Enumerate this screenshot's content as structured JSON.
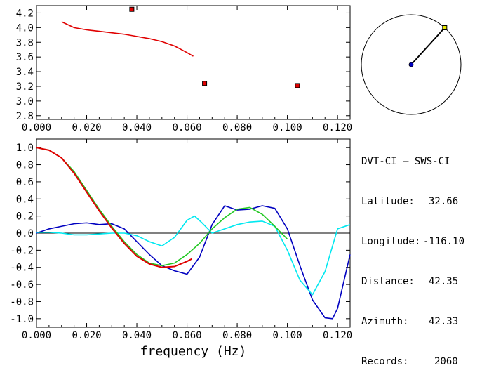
{
  "station": {
    "title": "DVT-CI – SWS-CI",
    "rows": [
      {
        "label": "Latitude:",
        "value": "32.66"
      },
      {
        "label": "Longitude:",
        "value": "-116.10"
      },
      {
        "label": "Distance:",
        "value": "42.35"
      },
      {
        "label": "Azimuth:",
        "value": "42.33"
      },
      {
        "label": "Records:",
        "value": "2060"
      }
    ]
  },
  "colors": {
    "red": "#e00000",
    "green": "#22c822",
    "blue": "#0000c0",
    "cyan": "#00e8f0",
    "marker": "#e00000",
    "azimuth_dot": "#e8e800"
  },
  "chart_data": [
    {
      "type": "scatter",
      "title": "",
      "xlabel": "",
      "ylabel": "",
      "xlim": [
        0.0,
        0.125
      ],
      "ylim": [
        2.75,
        4.3
      ],
      "xticks": [
        "0.000",
        "0.020",
        "0.040",
        "0.060",
        "0.080",
        "0.100",
        "0.120"
      ],
      "yticks": [
        "2.8",
        "3.0",
        "3.2",
        "3.4",
        "3.6",
        "3.8",
        "4.0",
        "4.2"
      ],
      "series": [
        {
          "color": "red",
          "style": "line",
          "x": [
            0.01,
            0.015,
            0.02,
            0.025,
            0.03,
            0.035,
            0.04,
            0.045,
            0.05,
            0.055,
            0.06,
            0.0625
          ],
          "y": [
            4.08,
            4.0,
            3.97,
            3.95,
            3.93,
            3.91,
            3.88,
            3.85,
            3.81,
            3.75,
            3.66,
            3.61
          ]
        },
        {
          "color": "marker",
          "style": "markers",
          "x": [
            0.038,
            0.067,
            0.104
          ],
          "y": [
            4.25,
            3.24,
            3.21
          ]
        }
      ]
    },
    {
      "type": "line",
      "title": "",
      "xlabel": "frequency (Hz)",
      "ylabel": "",
      "xlim": [
        0.0,
        0.125
      ],
      "ylim": [
        -1.1,
        1.1
      ],
      "xticks": [
        "0.000",
        "0.020",
        "0.040",
        "0.060",
        "0.080",
        "0.100",
        "0.120"
      ],
      "yticks": [
        "1.0",
        "0.8",
        "0.6",
        "0.4",
        "0.2",
        "0.0",
        "-0.2",
        "-0.4",
        "-0.6",
        "-0.8",
        "-1.0"
      ],
      "series": [
        {
          "color": "blue",
          "x": [
            0.0,
            0.005,
            0.01,
            0.015,
            0.02,
            0.025,
            0.03,
            0.035,
            0.04,
            0.045,
            0.05,
            0.055,
            0.06,
            0.065,
            0.07,
            0.075,
            0.08,
            0.085,
            0.09,
            0.095,
            0.1,
            0.105,
            0.11,
            0.115,
            0.118,
            0.12,
            0.125
          ],
          "y": [
            0.0,
            0.05,
            0.08,
            0.11,
            0.12,
            0.1,
            0.11,
            0.05,
            -0.1,
            -0.25,
            -0.38,
            -0.44,
            -0.48,
            -0.28,
            0.1,
            0.32,
            0.27,
            0.28,
            0.32,
            0.29,
            0.05,
            -0.38,
            -0.78,
            -0.99,
            -1.0,
            -0.88,
            -0.25
          ]
        },
        {
          "color": "cyan",
          "x": [
            0.0,
            0.005,
            0.01,
            0.015,
            0.02,
            0.025,
            0.03,
            0.035,
            0.04,
            0.045,
            0.05,
            0.055,
            0.06,
            0.063,
            0.066,
            0.07,
            0.075,
            0.08,
            0.085,
            0.09,
            0.095,
            0.1,
            0.105,
            0.11,
            0.115,
            0.12,
            0.125
          ],
          "y": [
            0.01,
            0.01,
            0.0,
            -0.02,
            -0.02,
            -0.01,
            0.0,
            0.0,
            -0.03,
            -0.1,
            -0.15,
            -0.05,
            0.15,
            0.2,
            0.12,
            0.0,
            0.05,
            0.1,
            0.13,
            0.14,
            0.08,
            -0.2,
            -0.55,
            -0.72,
            -0.45,
            0.05,
            0.1
          ]
        },
        {
          "color": "green",
          "x": [
            0.0,
            0.005,
            0.01,
            0.015,
            0.02,
            0.025,
            0.03,
            0.035,
            0.04,
            0.045,
            0.05,
            0.055,
            0.06,
            0.065,
            0.07,
            0.075,
            0.08,
            0.085,
            0.09,
            0.095,
            0.1
          ],
          "y": [
            1.0,
            0.97,
            0.88,
            0.72,
            0.5,
            0.28,
            0.08,
            -0.1,
            -0.25,
            -0.35,
            -0.38,
            -0.35,
            -0.25,
            -0.12,
            0.05,
            0.18,
            0.28,
            0.3,
            0.22,
            0.08,
            -0.07
          ]
        },
        {
          "color": "red",
          "x": [
            0.0,
            0.005,
            0.01,
            0.015,
            0.02,
            0.025,
            0.03,
            0.035,
            0.04,
            0.045,
            0.05,
            0.055,
            0.06,
            0.062
          ],
          "y": [
            1.0,
            0.97,
            0.88,
            0.7,
            0.48,
            0.26,
            0.06,
            -0.12,
            -0.27,
            -0.36,
            -0.4,
            -0.39,
            -0.33,
            -0.3
          ]
        }
      ]
    }
  ],
  "azimuth": {
    "degrees": 42.33
  }
}
